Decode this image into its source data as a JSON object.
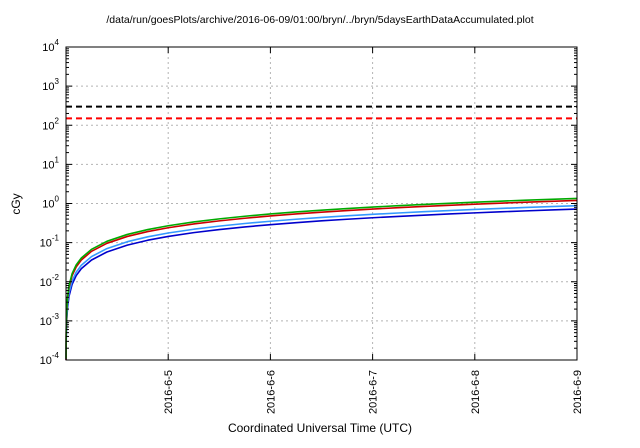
{
  "chart_data": {
    "type": "line",
    "title": "/data/run/goesPlots/archive/2016-06-09/01:00/bryn/../bryn/5daysEarthDataAccumulated.plot",
    "xlabel": "Coordinated Universal Time (UTC)",
    "ylabel": "cGy",
    "x_axis": {
      "unit": "days_since_start",
      "range_days": [
        0,
        5
      ],
      "tick_positions_days": [
        1,
        2,
        3,
        4,
        5
      ],
      "tick_labels": [
        "2016-6-5",
        "2016-6-6",
        "2016-6-7",
        "2016-6-8",
        "2016-6-9"
      ]
    },
    "y_axis": {
      "scale": "log10",
      "min_exponent": -4,
      "max_exponent": 4,
      "tick_exponents": [
        4,
        3,
        2,
        1,
        0,
        -1,
        -2,
        -3,
        -4
      ]
    },
    "grid": true,
    "legend": "none",
    "grid_color": "#b4b4b4",
    "thresholds": [
      {
        "name": "black-dashed-limit",
        "value_cgy": 300,
        "color": "#000000",
        "style": "dashed"
      },
      {
        "name": "red-dashed-limit",
        "value_cgy": 150,
        "color": "#ff0000",
        "style": "dashed"
      }
    ],
    "x_days_since_start": [
      0.0004,
      0.001,
      0.002,
      0.004,
      0.008,
      0.015,
      0.03,
      0.06,
      0.1,
      0.15,
      0.25,
      0.4,
      0.6,
      0.8,
      1.0,
      1.25,
      1.5,
      1.75,
      2.0,
      2.25,
      2.5,
      2.75,
      3.0,
      3.25,
      3.5,
      3.75,
      4.0,
      4.25,
      4.5,
      4.75,
      5.0
    ],
    "series": [
      {
        "name": "accumulated-dose-blue",
        "color": "#0000cc",
        "values_cgy": [
          5.76e-05,
          0.000144,
          0.000288,
          0.000576,
          0.001152,
          0.00216,
          0.00432,
          0.00864,
          0.0144,
          0.0216,
          0.036,
          0.0576,
          0.0864,
          0.1152,
          0.144,
          0.18,
          0.216,
          0.252,
          0.288,
          0.324,
          0.36,
          0.396,
          0.432,
          0.468,
          0.504,
          0.54,
          0.576,
          0.612,
          0.648,
          0.684,
          0.72
        ]
      },
      {
        "name": "accumulated-dose-lightblue",
        "color": "#3399ff",
        "values_cgy": [
          7.04e-05,
          0.000176,
          0.000352,
          0.000704,
          0.001408,
          0.00264,
          0.00528,
          0.01056,
          0.0176,
          0.0264,
          0.044,
          0.0704,
          0.1056,
          0.1408,
          0.176,
          0.22,
          0.264,
          0.308,
          0.352,
          0.396,
          0.44,
          0.484,
          0.528,
          0.572,
          0.616,
          0.66,
          0.704,
          0.748,
          0.792,
          0.836,
          0.88
        ]
      },
      {
        "name": "accumulated-dose-red",
        "color": "#cc0000",
        "values_cgy": [
          9.6e-05,
          0.00024,
          0.00048,
          0.00096,
          0.00192,
          0.0036,
          0.0072,
          0.0144,
          0.024,
          0.036,
          0.06,
          0.096,
          0.144,
          0.192,
          0.24,
          0.3,
          0.36,
          0.42,
          0.48,
          0.54,
          0.6,
          0.66,
          0.72,
          0.78,
          0.84,
          0.9,
          0.96,
          1.02,
          1.08,
          1.14,
          1.2
        ]
      },
      {
        "name": "accumulated-dose-green",
        "color": "#00aa00",
        "values_cgy": [
          0.000108,
          0.00027,
          0.00054,
          0.00108,
          0.00216,
          0.00405,
          0.0081,
          0.0162,
          0.027,
          0.0405,
          0.0675,
          0.108,
          0.162,
          0.216,
          0.27,
          0.3375,
          0.405,
          0.4725,
          0.54,
          0.6075,
          0.675,
          0.7425,
          0.81,
          0.8775,
          0.945,
          1.0125,
          1.08,
          1.1475,
          1.215,
          1.2825,
          1.35
        ]
      }
    ]
  }
}
